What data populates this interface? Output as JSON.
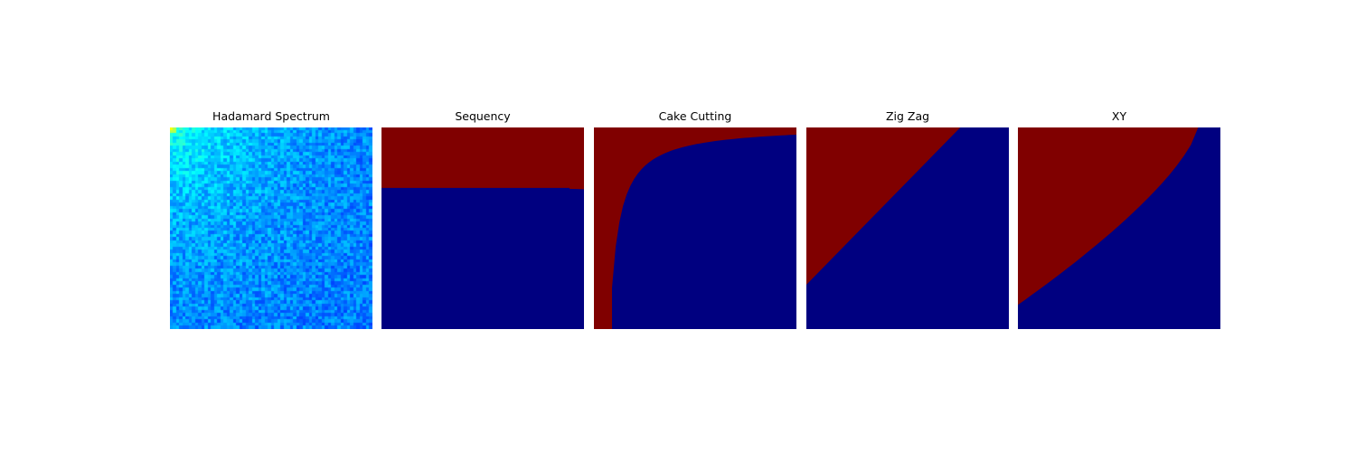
{
  "figure": {
    "background": "#ffffff"
  },
  "chart_data": [
    {
      "type": "heatmap",
      "title": "Hadamard Spectrum",
      "grid": false,
      "axes_visible": false,
      "colormap": "jet",
      "matrix_size": [
        64,
        64
      ],
      "description_values": "noisy spectrum magnitude, highest near top-left (0,0), decaying toward bottom-right",
      "value_range": [
        0,
        1
      ]
    },
    {
      "type": "heatmap",
      "title": "Sequency",
      "grid": false,
      "axes_visible": false,
      "colormap": "jet",
      "matrix_size": [
        64,
        64
      ],
      "selected_color": "#800000",
      "unselected_color": "#000080",
      "selected_rows_fraction": 0.3
    },
    {
      "type": "heatmap",
      "title": "Cake Cutting",
      "grid": false,
      "axes_visible": false,
      "colormap": "jet",
      "matrix_size": [
        64,
        64
      ],
      "selected_color": "#800000",
      "unselected_color": "#000080"
    },
    {
      "type": "heatmap",
      "title": "Zig Zag",
      "grid": false,
      "axes_visible": false,
      "colormap": "jet",
      "matrix_size": [
        64,
        64
      ],
      "selected_color": "#800000",
      "unselected_color": "#000080"
    },
    {
      "type": "heatmap",
      "title": "XY",
      "grid": false,
      "axes_visible": false,
      "colormap": "jet",
      "matrix_size": [
        64,
        64
      ],
      "selected_color": "#800000",
      "unselected_color": "#000080"
    }
  ]
}
